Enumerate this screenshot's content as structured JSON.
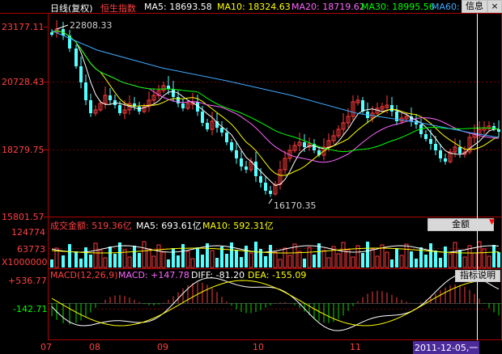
{
  "header": {
    "period": "日线(复权)",
    "index_name": "恒生指数",
    "ma5": "MA5: 18693.58",
    "ma10": "MA10: 18324.63",
    "ma20": "MA20: 18719.62",
    "ma30": "MA30: 18995.56",
    "ma60": "MA60:",
    "info_button": "信息",
    "close_button": "×"
  },
  "price_panel": {
    "y_labels": [
      "23177.11",
      "20728.43",
      "18279.75",
      "15801.57"
    ],
    "high_label": "22808.33",
    "low_label": "16170.35"
  },
  "volume_panel": {
    "title": "成交金额: 519.36亿",
    "ma5": "MA5: 693.61亿",
    "ma10": "MA10: 592.31亿",
    "selector": "金额",
    "y_labels": [
      "124774",
      "63773",
      "X1000000"
    ]
  },
  "macd_panel": {
    "title": "MACD(12,26,9)",
    "macd": "MACD: +147.78",
    "diff": "DIFF: -81.20",
    "dea": "DEA: -155.09",
    "indicator_button": "指标说明",
    "y_labels": [
      "+536.77",
      "-142.71"
    ]
  },
  "x_axis": {
    "months": [
      "07",
      "08",
      "09",
      "10",
      "11"
    ],
    "cursor_date": "2011-12-05,一"
  },
  "colors": {
    "up": "#ff3b3b",
    "down": "#54ffff",
    "ma5": "#ffffff",
    "ma10": "#ffff00",
    "ma20": "#ff66ff",
    "ma30": "#00ff00",
    "ma60": "#3fa9ff",
    "axis": "#c00000"
  }
}
